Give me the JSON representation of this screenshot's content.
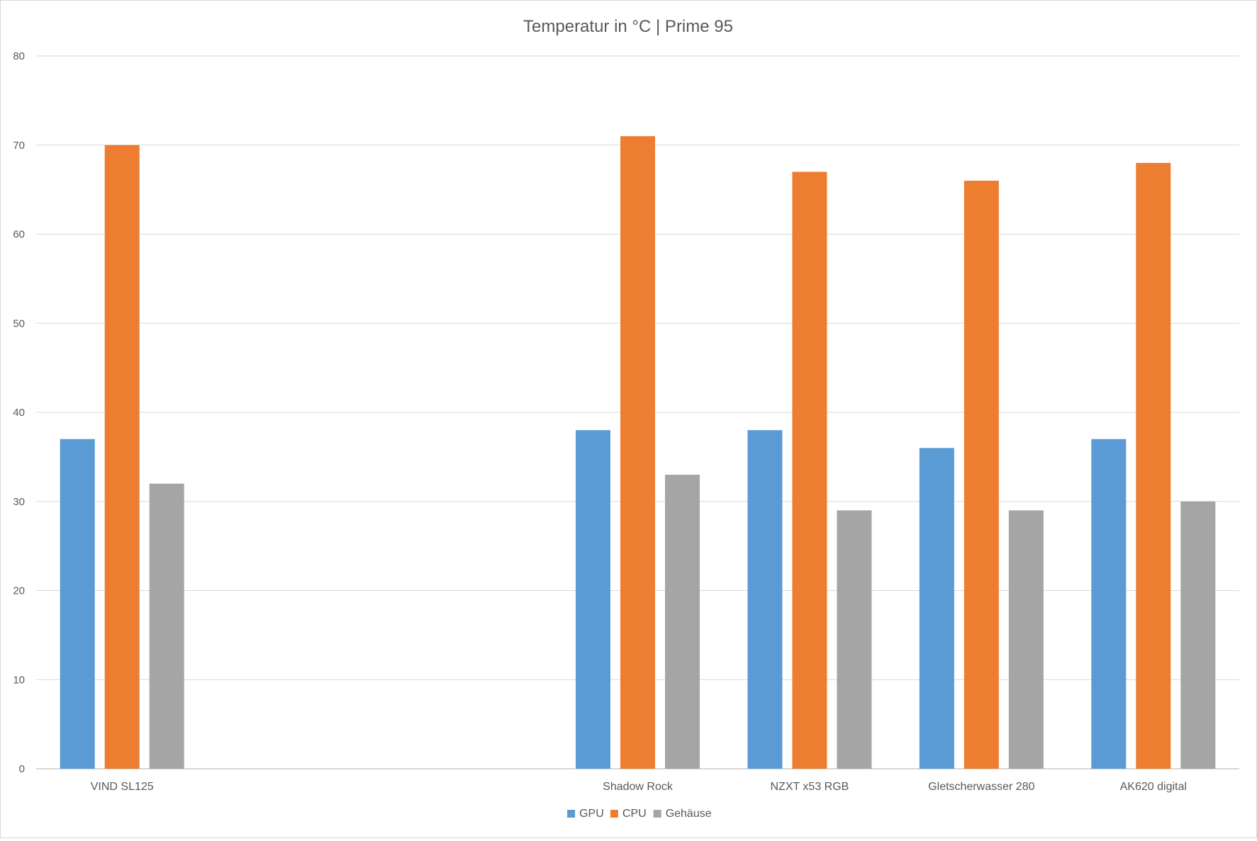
{
  "chart_data": {
    "type": "bar",
    "title": "Temperatur in °C | Prime 95",
    "xlabel": "",
    "ylabel": "",
    "ylim": [
      0,
      80
    ],
    "yticks": [
      0,
      10,
      20,
      30,
      40,
      50,
      60,
      70,
      80
    ],
    "grid": true,
    "legend": "bottom",
    "categories": [
      "VIND SL125",
      "",
      "",
      "Shadow Rock",
      "NZXT x53 RGB",
      "Gletscherwasser 280",
      "AK620 digital"
    ],
    "series": [
      {
        "name": "GPU",
        "color": "#5b9bd5",
        "values": [
          37,
          null,
          null,
          38,
          38,
          36,
          37
        ]
      },
      {
        "name": "CPU",
        "color": "#ed7d31",
        "values": [
          70,
          null,
          null,
          71,
          67,
          66,
          68
        ]
      },
      {
        "name": "Gehäuse",
        "color": "#a5a5a5",
        "values": [
          32,
          null,
          null,
          33,
          29,
          29,
          30
        ]
      }
    ]
  }
}
